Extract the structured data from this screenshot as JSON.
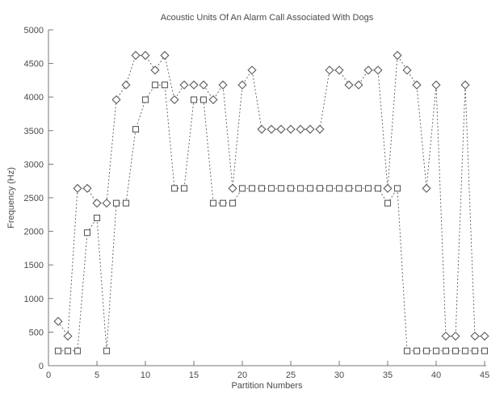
{
  "chart_data": {
    "type": "line",
    "title": "Acoustic Units Of An Alarm Call Associated With Dogs",
    "xlabel": "Partition Numbers",
    "ylabel": "Frequency (Hz)",
    "xlim": [
      0,
      45
    ],
    "ylim": [
      0,
      5000
    ],
    "x_ticks": [
      0,
      5,
      10,
      15,
      20,
      25,
      30,
      35,
      40,
      45
    ],
    "y_ticks": [
      0,
      500,
      1000,
      1500,
      2000,
      2500,
      3000,
      3500,
      4000,
      4500,
      5000
    ],
    "grid": false,
    "legend": "none",
    "line_style": "dash-dot",
    "axis_color": "#777777",
    "line_color": "#5a5a5a",
    "text_color": "#4a4a4a",
    "x": [
      1,
      2,
      3,
      4,
      5,
      6,
      7,
      8,
      9,
      10,
      11,
      12,
      13,
      14,
      15,
      16,
      17,
      18,
      19,
      20,
      21,
      22,
      23,
      24,
      25,
      26,
      27,
      28,
      29,
      30,
      31,
      32,
      33,
      34,
      35,
      36,
      37,
      38,
      39,
      40,
      41,
      42,
      43,
      44,
      45
    ],
    "series": [
      {
        "name": "diamond-series",
        "marker": "diamond",
        "values": [
          660,
          440,
          2640,
          2640,
          2420,
          2420,
          3960,
          4180,
          4620,
          4620,
          4400,
          4620,
          3960,
          4180,
          4180,
          4180,
          3960,
          4180,
          2640,
          4180,
          4400,
          3520,
          3520,
          3520,
          3520,
          3520,
          3520,
          3520,
          4400,
          4400,
          4180,
          4180,
          4400,
          4400,
          2640,
          4620,
          4400,
          4180,
          2640,
          4180,
          440,
          440,
          4180,
          440,
          440
        ]
      },
      {
        "name": "square-series",
        "marker": "square",
        "values": [
          220,
          220,
          220,
          1980,
          2200,
          220,
          2420,
          2420,
          3520,
          3960,
          4180,
          4180,
          2640,
          2640,
          3960,
          3960,
          2420,
          2420,
          2420,
          2640,
          2640,
          2640,
          2640,
          2640,
          2640,
          2640,
          2640,
          2640,
          2640,
          2640,
          2640,
          2640,
          2640,
          2640,
          2420,
          2640,
          220,
          220,
          220,
          220,
          220,
          220,
          220,
          220,
          220
        ]
      }
    ]
  }
}
